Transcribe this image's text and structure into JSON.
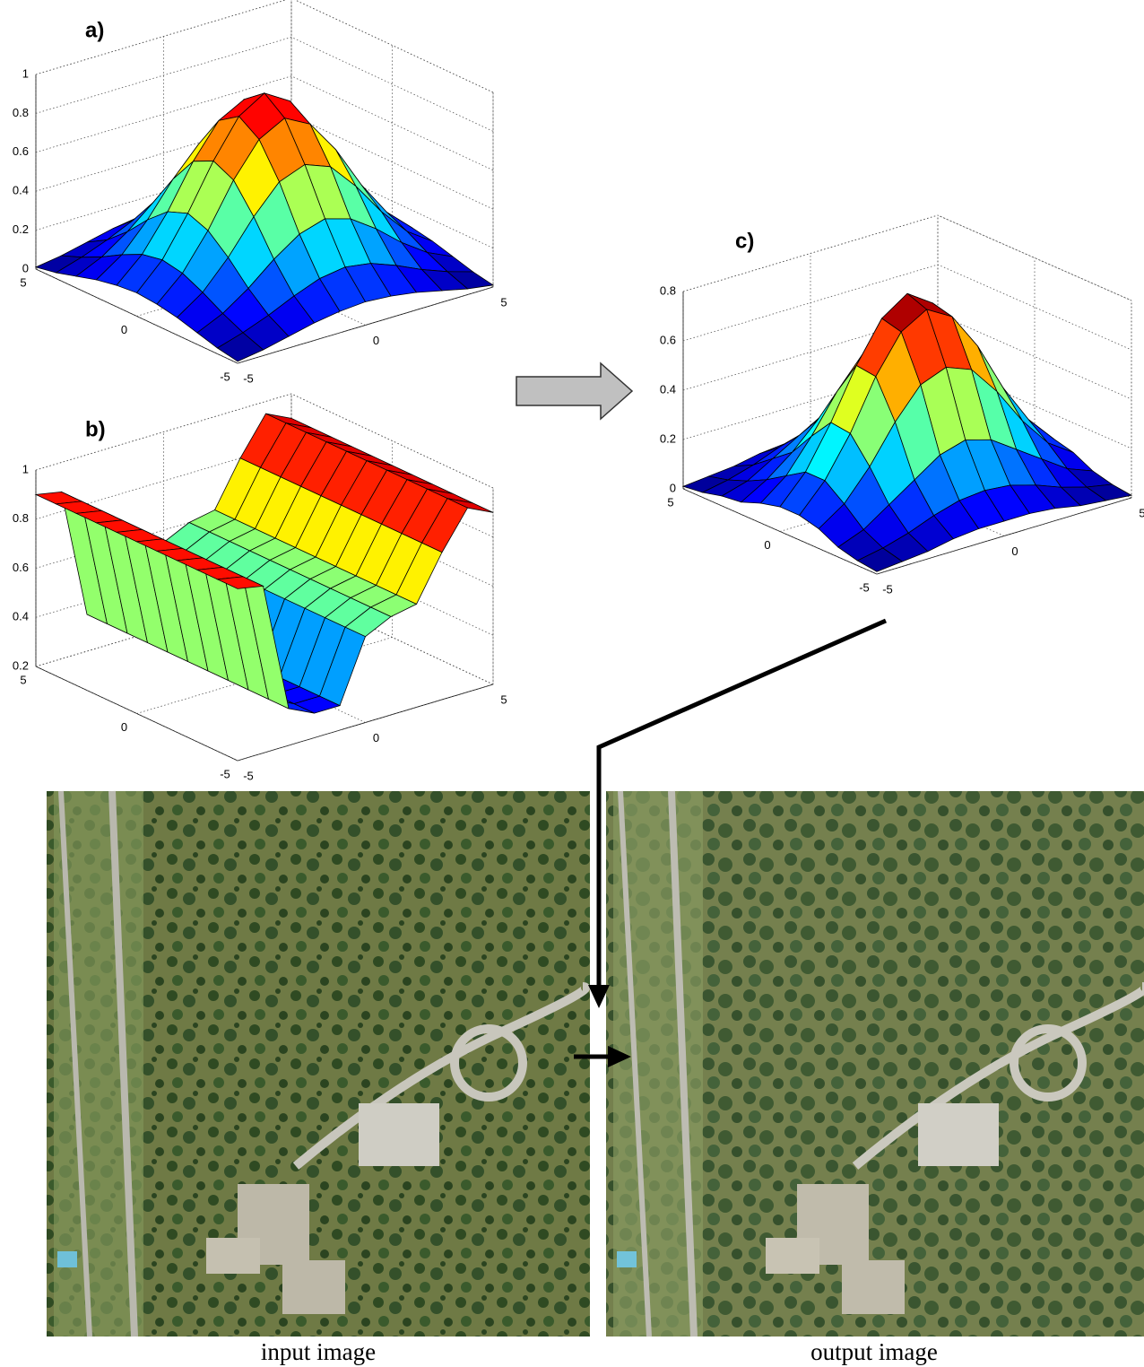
{
  "panels": [
    {
      "label": "a)",
      "colormap": "jet",
      "xlim": [
        -5,
        5
      ],
      "ylim": [
        -5,
        5
      ],
      "zlim": [
        0,
        1
      ],
      "xticks": [
        -5,
        0,
        5
      ],
      "yticks": [
        -5,
        0,
        5
      ],
      "zticks": [
        0,
        0.2,
        0.4,
        0.6,
        0.8,
        1
      ],
      "x": [
        -5,
        -4,
        -3,
        -2,
        -1,
        0,
        1,
        2,
        3,
        4,
        5
      ],
      "y": [
        -5,
        -4,
        -3,
        -2,
        -1,
        0,
        1,
        2,
        3,
        4,
        5
      ],
      "z": [
        [
          0.01,
          0.03,
          0.06,
          0.09,
          0.11,
          0.12,
          0.11,
          0.09,
          0.06,
          0.03,
          0.01
        ],
        [
          0.03,
          0.07,
          0.12,
          0.18,
          0.23,
          0.25,
          0.23,
          0.18,
          0.12,
          0.07,
          0.03
        ],
        [
          0.06,
          0.12,
          0.21,
          0.32,
          0.41,
          0.45,
          0.41,
          0.32,
          0.21,
          0.12,
          0.06
        ],
        [
          0.09,
          0.18,
          0.32,
          0.49,
          0.63,
          0.68,
          0.63,
          0.49,
          0.32,
          0.18,
          0.09
        ],
        [
          0.11,
          0.23,
          0.41,
          0.63,
          0.8,
          0.87,
          0.8,
          0.63,
          0.41,
          0.23,
          0.11
        ],
        [
          0.12,
          0.25,
          0.45,
          0.68,
          0.87,
          0.95,
          0.87,
          0.68,
          0.45,
          0.25,
          0.12
        ],
        [
          0.11,
          0.23,
          0.41,
          0.63,
          0.8,
          0.87,
          0.8,
          0.63,
          0.41,
          0.23,
          0.11
        ],
        [
          0.09,
          0.18,
          0.32,
          0.49,
          0.63,
          0.68,
          0.63,
          0.49,
          0.32,
          0.18,
          0.09
        ],
        [
          0.06,
          0.12,
          0.21,
          0.32,
          0.41,
          0.45,
          0.41,
          0.32,
          0.21,
          0.12,
          0.06
        ],
        [
          0.03,
          0.07,
          0.12,
          0.18,
          0.23,
          0.25,
          0.23,
          0.18,
          0.12,
          0.07,
          0.03
        ],
        [
          0.01,
          0.03,
          0.06,
          0.09,
          0.11,
          0.12,
          0.11,
          0.09,
          0.06,
          0.03,
          0.01
        ]
      ]
    },
    {
      "label": "b)",
      "colormap": "jet",
      "xlim": [
        -5,
        5
      ],
      "ylim": [
        -5,
        5
      ],
      "zlim": [
        0.2,
        1
      ],
      "xticks": [
        -5,
        0,
        5
      ],
      "yticks": [
        -5,
        0,
        5
      ],
      "zticks": [
        0.2,
        0.4,
        0.6,
        0.8,
        1
      ],
      "x": [
        -5,
        -4,
        -3,
        -2,
        -1,
        0,
        1,
        2,
        3,
        4,
        5
      ],
      "y": [
        -5,
        -4,
        -3,
        -2,
        -1,
        0,
        1,
        2,
        3,
        4,
        5
      ],
      "z": [
        [
          0.9,
          0.88,
          0.35,
          0.3,
          0.3,
          0.55,
          0.6,
          0.62,
          0.8,
          0.95,
          0.9
        ],
        [
          0.9,
          0.88,
          0.35,
          0.3,
          0.3,
          0.55,
          0.6,
          0.62,
          0.8,
          0.95,
          0.9
        ],
        [
          0.9,
          0.88,
          0.35,
          0.3,
          0.3,
          0.55,
          0.6,
          0.62,
          0.8,
          0.95,
          0.9
        ],
        [
          0.9,
          0.88,
          0.35,
          0.3,
          0.3,
          0.55,
          0.6,
          0.62,
          0.8,
          0.95,
          0.9
        ],
        [
          0.9,
          0.88,
          0.35,
          0.3,
          0.3,
          0.55,
          0.6,
          0.62,
          0.8,
          0.95,
          0.9
        ],
        [
          0.9,
          0.88,
          0.35,
          0.3,
          0.3,
          0.55,
          0.6,
          0.62,
          0.8,
          0.95,
          0.9
        ],
        [
          0.9,
          0.88,
          0.35,
          0.3,
          0.3,
          0.55,
          0.6,
          0.62,
          0.8,
          0.95,
          0.9
        ],
        [
          0.9,
          0.88,
          0.35,
          0.3,
          0.3,
          0.55,
          0.6,
          0.62,
          0.8,
          0.95,
          0.9
        ],
        [
          0.9,
          0.88,
          0.35,
          0.3,
          0.3,
          0.55,
          0.6,
          0.62,
          0.8,
          0.95,
          0.9
        ],
        [
          0.9,
          0.88,
          0.35,
          0.3,
          0.3,
          0.55,
          0.6,
          0.62,
          0.8,
          0.95,
          0.9
        ],
        [
          0.9,
          0.88,
          0.35,
          0.3,
          0.3,
          0.55,
          0.6,
          0.62,
          0.8,
          0.95,
          0.9
        ]
      ]
    },
    {
      "label": "c)",
      "colormap": "jet",
      "xlim": [
        -5,
        5
      ],
      "ylim": [
        -5,
        5
      ],
      "zlim": [
        0,
        0.8
      ],
      "xticks": [
        -5,
        0,
        5
      ],
      "yticks": [
        -5,
        0,
        5
      ],
      "zticks": [
        0,
        0.2,
        0.4,
        0.6,
        0.8
      ],
      "x": [
        -5,
        -4,
        -3,
        -2,
        -1,
        0,
        1,
        2,
        3,
        4,
        5
      ],
      "y": [
        -5,
        -4,
        -3,
        -2,
        -1,
        0,
        1,
        2,
        3,
        4,
        5
      ],
      "z": [
        [
          0.01,
          0.02,
          0.03,
          0.05,
          0.06,
          0.06,
          0.06,
          0.05,
          0.03,
          0.02,
          0.01
        ],
        [
          0.02,
          0.04,
          0.07,
          0.11,
          0.14,
          0.15,
          0.14,
          0.11,
          0.07,
          0.04,
          0.02
        ],
        [
          0.04,
          0.08,
          0.15,
          0.22,
          0.29,
          0.32,
          0.29,
          0.22,
          0.15,
          0.08,
          0.04
        ],
        [
          0.08,
          0.15,
          0.27,
          0.42,
          0.54,
          0.58,
          0.54,
          0.42,
          0.27,
          0.15,
          0.08
        ],
        [
          0.1,
          0.21,
          0.37,
          0.57,
          0.72,
          0.78,
          0.72,
          0.57,
          0.37,
          0.21,
          0.1
        ],
        [
          0.1,
          0.21,
          0.38,
          0.58,
          0.74,
          0.81,
          0.74,
          0.58,
          0.38,
          0.21,
          0.1
        ],
        [
          0.08,
          0.16,
          0.29,
          0.44,
          0.56,
          0.61,
          0.56,
          0.44,
          0.29,
          0.16,
          0.08
        ],
        [
          0.05,
          0.11,
          0.19,
          0.29,
          0.38,
          0.41,
          0.38,
          0.29,
          0.19,
          0.11,
          0.05
        ],
        [
          0.04,
          0.07,
          0.13,
          0.19,
          0.25,
          0.27,
          0.25,
          0.19,
          0.13,
          0.07,
          0.04
        ],
        [
          0.02,
          0.04,
          0.07,
          0.11,
          0.14,
          0.15,
          0.14,
          0.11,
          0.07,
          0.04,
          0.02
        ],
        [
          0.01,
          0.02,
          0.03,
          0.05,
          0.06,
          0.06,
          0.06,
          0.05,
          0.03,
          0.02,
          0.01
        ]
      ]
    }
  ],
  "images": [
    {
      "caption": "input image"
    },
    {
      "caption": "output image"
    }
  ]
}
